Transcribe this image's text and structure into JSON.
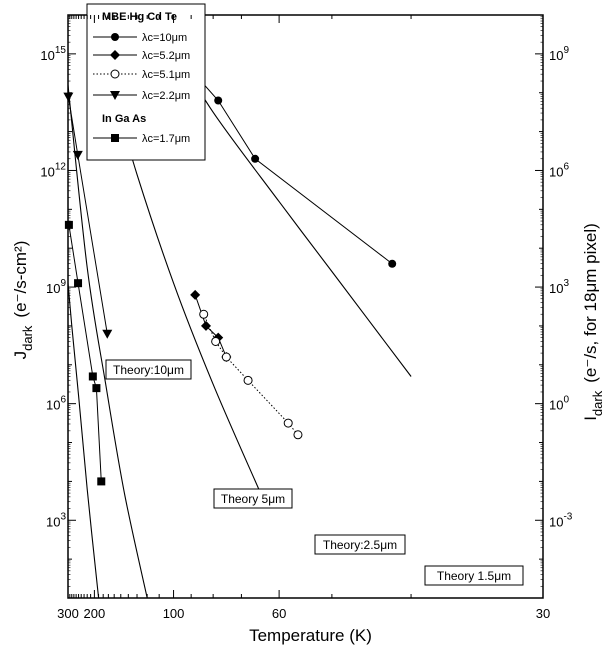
{
  "chart_data": {
    "type": "scatter",
    "title": "",
    "xlabel": "Temperature  (K)",
    "ylabel_left": {
      "main": "J",
      "sub": "dark",
      "units": "(e⁻/s-cm²)"
    },
    "ylabel_right": {
      "main": "I",
      "sub": "dark",
      "units": "(e⁻/s, for 18μm pixel)"
    },
    "x_scale": "reciprocal",
    "xlim": [
      30,
      300
    ],
    "x_ticks": [
      30,
      60,
      100,
      200,
      300
    ],
    "y_scale": "log",
    "ylim_exp": [
      1.0,
      16.0
    ],
    "y_ticks_left": [
      {
        "exp": 3,
        "label": "10",
        "sup": "3"
      },
      {
        "exp": 6,
        "label": "10",
        "sup": "6"
      },
      {
        "exp": 9,
        "label": "10",
        "sup": "9"
      },
      {
        "exp": 12,
        "label": "10",
        "sup": "12"
      },
      {
        "exp": 15,
        "label": "10",
        "sup": "15"
      }
    ],
    "y_ticks_right": [
      {
        "exp": 3,
        "label": "10",
        "sup": "-3"
      },
      {
        "exp": 6,
        "label": "10",
        "sup": "0"
      },
      {
        "exp": 9,
        "label": "10",
        "sup": "3"
      },
      {
        "exp": 12,
        "label": "10",
        "sup": "6"
      },
      {
        "exp": 15,
        "label": "10",
        "sup": "9"
      }
    ],
    "legend": {
      "position": "top-left",
      "group1": "MBE Hg Cd Te",
      "group2": "In Ga As"
    },
    "series": [
      {
        "name": "λc=10μm",
        "marker": "circle-filled",
        "line": "solid",
        "x": [
          42,
          66,
          78,
          98
        ],
        "y_exp": [
          9.6,
          12.3,
          13.8,
          15.0
        ]
      },
      {
        "name": "λc=5.2μm",
        "marker": "diamond",
        "line": "solid",
        "x": [
          75,
          78,
          83,
          88
        ],
        "y_exp": [
          7.2,
          7.7,
          8.0,
          8.8
        ]
      },
      {
        "name": "λc=5.1μm",
        "marker": "circle-open",
        "line": "dotted",
        "x": [
          56,
          58,
          68,
          75,
          79,
          84
        ],
        "y_exp": [
          5.2,
          5.5,
          6.6,
          7.2,
          7.6,
          8.3
        ]
      },
      {
        "name": "λc=2.2μm",
        "marker": "triangle-down",
        "line": "solid",
        "x": [
          172,
          253,
          298
        ],
        "y_exp": [
          7.8,
          12.4,
          13.9
        ]
      },
      {
        "name": "λc=1.7μm",
        "marker": "square",
        "line": "solid",
        "x": [
          184,
          195,
          204,
          252,
          295
        ],
        "y_exp": [
          4.0,
          6.4,
          6.7,
          9.1,
          10.6
        ]
      }
    ],
    "theory_labels": [
      "Theory:10μm",
      "Theory 5μm",
      "Theory:2.5μm",
      "Theory 1.5μm"
    ],
    "theory_curves": [
      {
        "label": "Theory:10μm",
        "x": [
          40,
          50,
          60,
          80,
          100
        ],
        "y_exp": [
          6.7,
          9.4,
          11.2,
          13.5,
          15.2
        ]
      },
      {
        "label": "Theory 5μm",
        "x": [
          65,
          80,
          100,
          130,
          165
        ],
        "y_exp": [
          3.8,
          6.5,
          9.1,
          11.9,
          14.2
        ]
      },
      {
        "label": "Theory:2.5μm",
        "x": [
          120,
          145,
          175,
          220,
          300
        ],
        "y_exp": [
          1.0,
          3.7,
          6.5,
          9.5,
          14.2
        ]
      },
      {
        "label": "Theory 1.5μm",
        "x": [
          190,
          220,
          250,
          280,
          300
        ],
        "y_exp": [
          1.0,
          3.8,
          6.2,
          8.0,
          9.1
        ]
      }
    ]
  }
}
